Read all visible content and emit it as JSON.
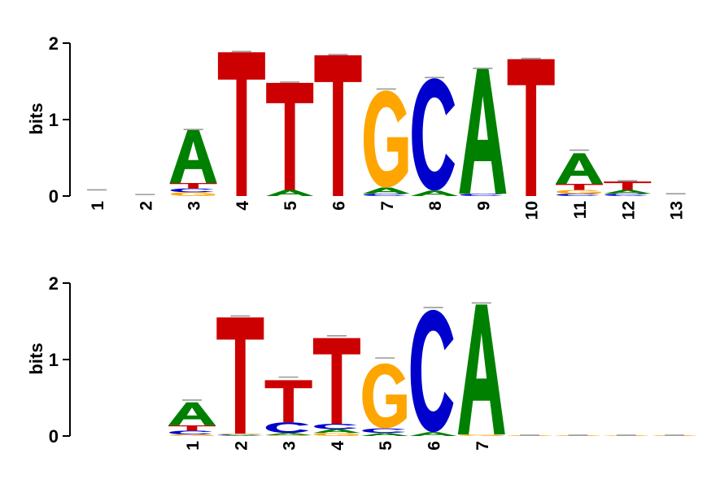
{
  "colors": {
    "A": "#008000",
    "C": "#0000CC",
    "G": "#FFA500",
    "T": "#CC0000",
    "error_bar": "#999999",
    "axis": "#000000"
  },
  "chart_data": [
    {
      "type": "sequence-logo",
      "ylabel": "bits",
      "ylim": [
        0,
        2
      ],
      "yticks": [
        "0",
        "1",
        "2"
      ],
      "positions": [
        {
          "label": "1",
          "letters": [],
          "error_top": 0.08
        },
        {
          "label": "2",
          "letters": [],
          "error_top": 0.02
        },
        {
          "label": "3",
          "letters": [
            {
              "b": "G",
              "h": 0.05
            },
            {
              "b": "C",
              "h": 0.05
            },
            {
              "b": "T",
              "h": 0.07
            },
            {
              "b": "A",
              "h": 0.7
            }
          ],
          "error_top": 0.87
        },
        {
          "label": "4",
          "letters": [
            {
              "b": "T",
              "h": 1.88
            }
          ],
          "error_top": 1.89
        },
        {
          "label": "5",
          "letters": [
            {
              "b": "A",
              "h": 0.08
            },
            {
              "b": "T",
              "h": 1.4
            }
          ],
          "error_top": 1.49
        },
        {
          "label": "6",
          "letters": [
            {
              "b": "T",
              "h": 1.84
            }
          ],
          "error_top": 1.85
        },
        {
          "label": "7",
          "letters": [
            {
              "b": "C",
              "h": 0.03
            },
            {
              "b": "A",
              "h": 0.08
            },
            {
              "b": "G",
              "h": 1.27
            }
          ],
          "error_top": 1.4
        },
        {
          "label": "8",
          "letters": [
            {
              "b": "A",
              "h": 0.07
            },
            {
              "b": "C",
              "h": 1.47
            }
          ],
          "error_top": 1.55
        },
        {
          "label": "9",
          "letters": [
            {
              "b": "C",
              "h": 0.03
            },
            {
              "b": "A",
              "h": 1.64
            }
          ],
          "error_top": 1.67
        },
        {
          "label": "10",
          "letters": [
            {
              "b": "T",
              "h": 1.79
            }
          ],
          "error_top": 1.8
        },
        {
          "label": "11",
          "letters": [
            {
              "b": "C",
              "h": 0.03
            },
            {
              "b": "G",
              "h": 0.05
            },
            {
              "b": "T",
              "h": 0.08
            },
            {
              "b": "A",
              "h": 0.4
            }
          ],
          "error_top": 0.6
        },
        {
          "label": "12",
          "letters": [
            {
              "b": "C",
              "h": 0.03
            },
            {
              "b": "A",
              "h": 0.05
            },
            {
              "b": "T",
              "h": 0.11
            }
          ],
          "error_top": 0.2
        },
        {
          "label": "13",
          "letters": [],
          "error_top": 0.03
        }
      ]
    },
    {
      "type": "sequence-logo",
      "ylabel": "bits",
      "ylim": [
        0,
        2
      ],
      "yticks": [
        "0",
        "1",
        "2"
      ],
      "positions": [
        {
          "label": "1",
          "letters": [
            {
              "b": "G",
              "h": 0.02
            },
            {
              "b": "C",
              "h": 0.05
            },
            {
              "b": "T",
              "h": 0.07
            },
            {
              "b": "A",
              "h": 0.3
            }
          ],
          "error_top": 0.47
        },
        {
          "label": "2",
          "letters": [
            {
              "b": "A",
              "h": 0.01
            },
            {
              "b": "C",
              "h": 0.01
            },
            {
              "b": "G",
              "h": 0.01
            },
            {
              "b": "T",
              "h": 1.52
            }
          ],
          "error_top": 1.57
        },
        {
          "label": "3",
          "letters": [
            {
              "b": "G",
              "h": 0.01
            },
            {
              "b": "A",
              "h": 0.03
            },
            {
              "b": "C",
              "h": 0.14
            },
            {
              "b": "T",
              "h": 0.55
            }
          ],
          "error_top": 0.77
        },
        {
          "label": "4",
          "letters": [
            {
              "b": "G",
              "h": 0.04
            },
            {
              "b": "A",
              "h": 0.05
            },
            {
              "b": "C",
              "h": 0.07
            },
            {
              "b": "T",
              "h": 1.12
            }
          ],
          "error_top": 1.31
        },
        {
          "label": "5",
          "letters": [
            {
              "b": "A",
              "h": 0.04
            },
            {
              "b": "C",
              "h": 0.06
            },
            {
              "b": "G",
              "h": 0.85
            }
          ],
          "error_top": 1.02
        },
        {
          "label": "6",
          "letters": [
            {
              "b": "A",
              "h": 0.05
            },
            {
              "b": "C",
              "h": 1.6
            }
          ],
          "error_top": 1.68
        },
        {
          "label": "7",
          "letters": [
            {
              "b": "G",
              "h": 0.02
            },
            {
              "b": "A",
              "h": 1.7
            }
          ],
          "error_top": 1.74
        },
        {
          "label": "",
          "letters": [
            {
              "b": "G",
              "h": 0.01
            }
          ],
          "error_top": 0.01
        },
        {
          "label": "",
          "letters": [
            {
              "b": "G",
              "h": 0.01
            }
          ],
          "error_top": 0.01
        },
        {
          "label": "",
          "letters": [
            {
              "b": "G",
              "h": 0.01
            }
          ],
          "error_top": 0.01
        },
        {
          "label": "",
          "letters": [
            {
              "b": "G",
              "h": 0.01
            }
          ],
          "error_top": 0.01
        }
      ]
    }
  ]
}
